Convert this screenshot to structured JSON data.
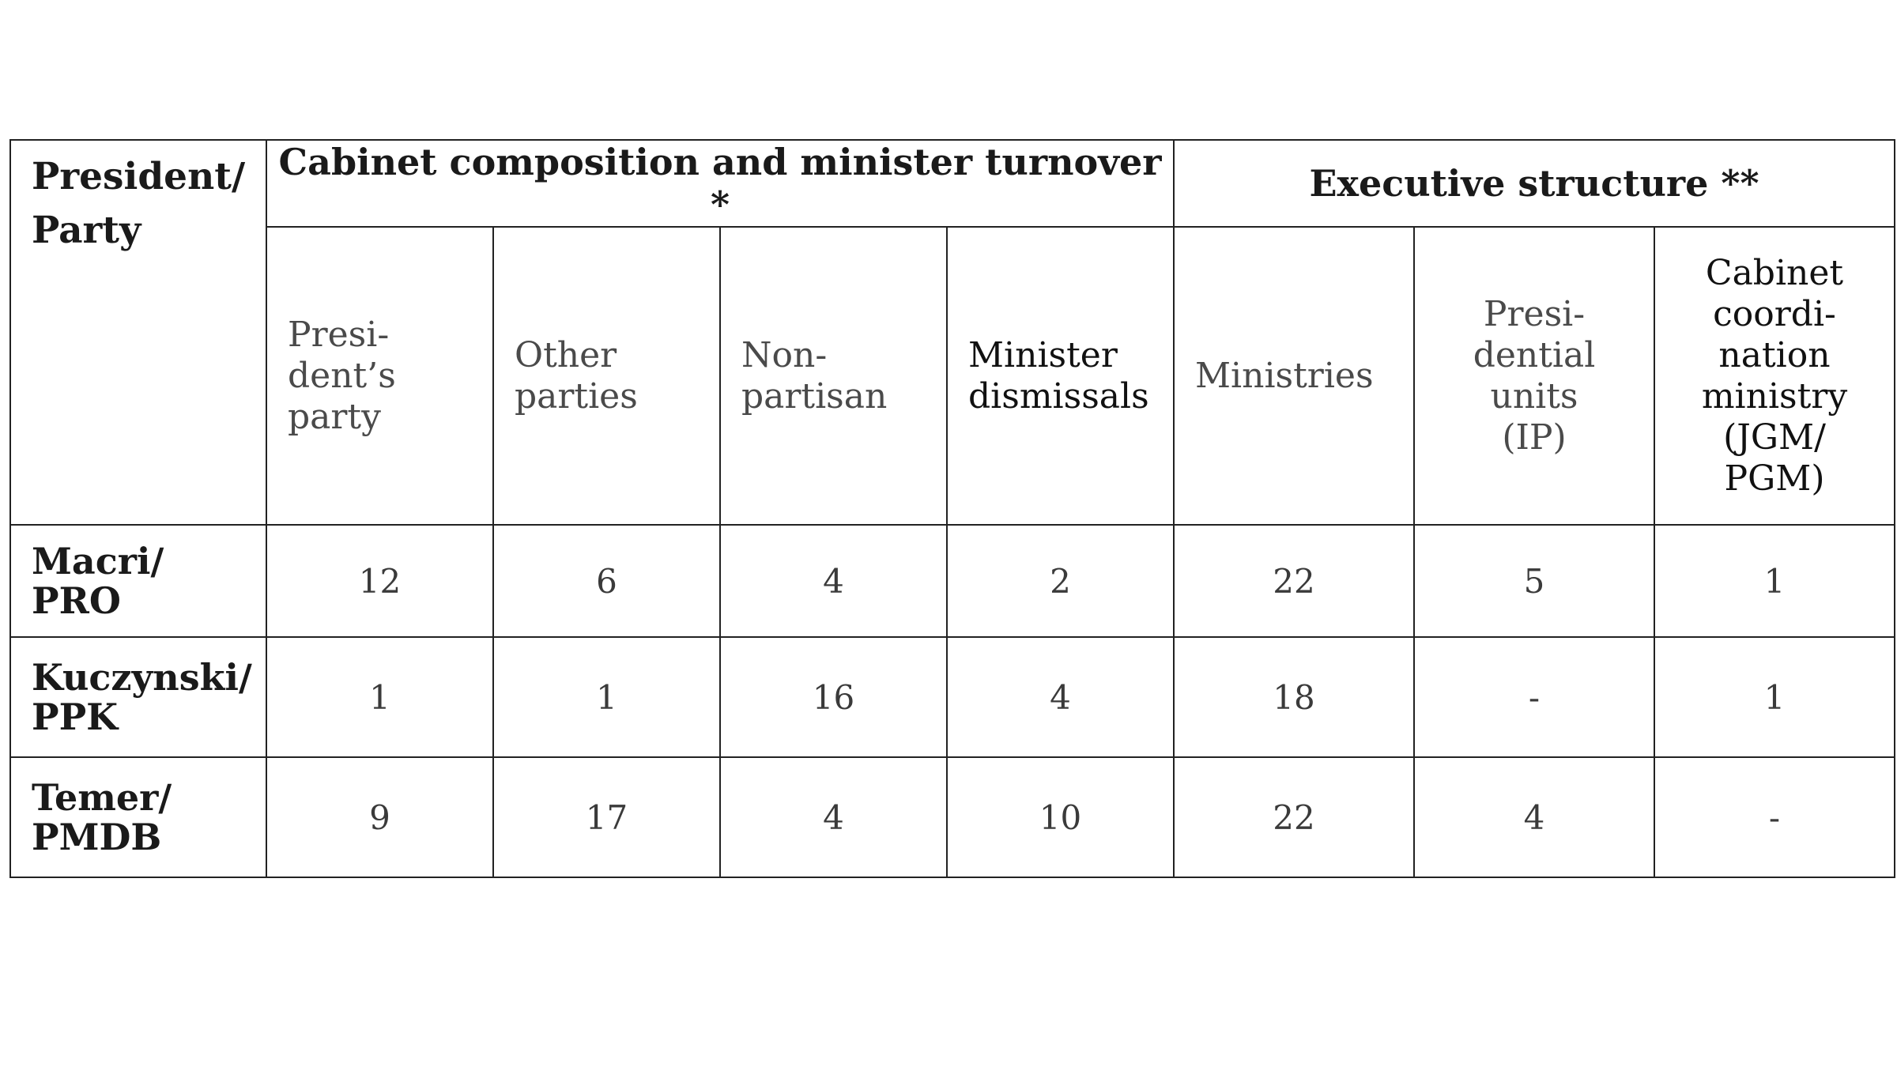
{
  "table": {
    "corner_header": "President/\nParty",
    "group_headers": [
      "Cabinet composition and minister turnover *",
      "Executive structure **"
    ],
    "column_headers": [
      "Presi-\ndent’s\nparty",
      "Other\nparties",
      "Non-\npartisan",
      "Minister\ndismissals",
      "Ministries",
      "Presi-\ndential\nunits\n(IP)",
      "Cabinet\ncoordi-\nnation\nministry\n(JGM/\nPGM)"
    ],
    "rows": [
      {
        "label": "Macri/\nPRO",
        "cells": [
          "12",
          "6",
          "4",
          "2",
          "22",
          "5",
          "1"
        ]
      },
      {
        "label": "Kuczynski/\nPPK",
        "cells": [
          "1",
          "1",
          "16",
          "4",
          "18",
          "-",
          "1"
        ]
      },
      {
        "label": "Temer/\nPMDB",
        "cells": [
          "9",
          "17",
          "4",
          "10",
          "22",
          "4",
          "-"
        ]
      }
    ]
  }
}
